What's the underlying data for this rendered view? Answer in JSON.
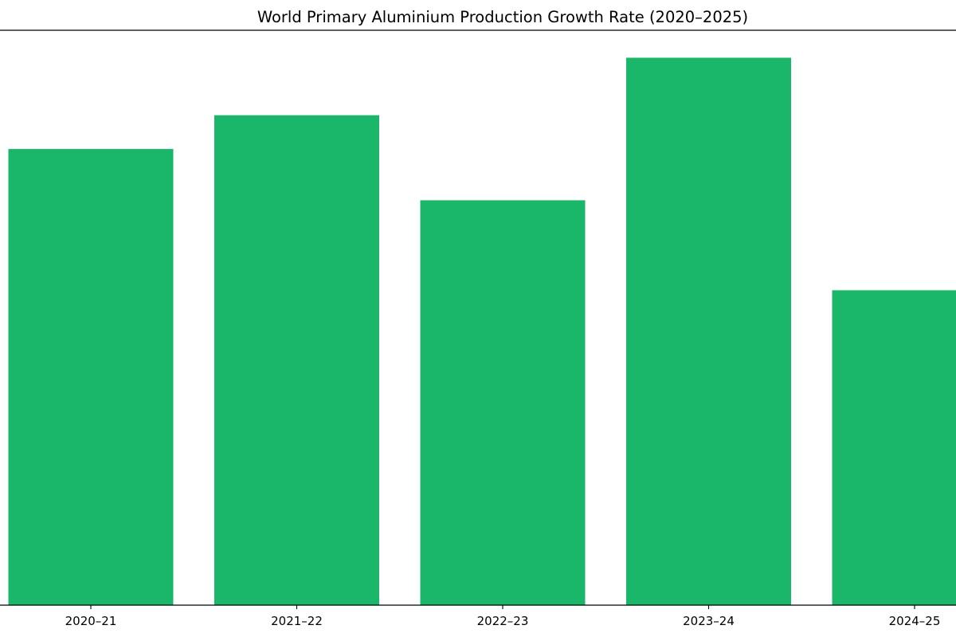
{
  "chart_data": {
    "type": "bar",
    "title": "World Primary Aluminium Production Growth Rate (2020–2025)",
    "xlabel": "",
    "ylabel": "",
    "categories": [
      "2020–21",
      "2021–22",
      "2022–23",
      "2023–24",
      "2024–25"
    ],
    "values": [
      3.65,
      3.92,
      3.24,
      4.38,
      2.52
    ],
    "ylim": [
      0,
      4.6
    ],
    "grid": false,
    "legend": "none",
    "bar_color": "#1ab76b",
    "axis_color": "#000000"
  }
}
